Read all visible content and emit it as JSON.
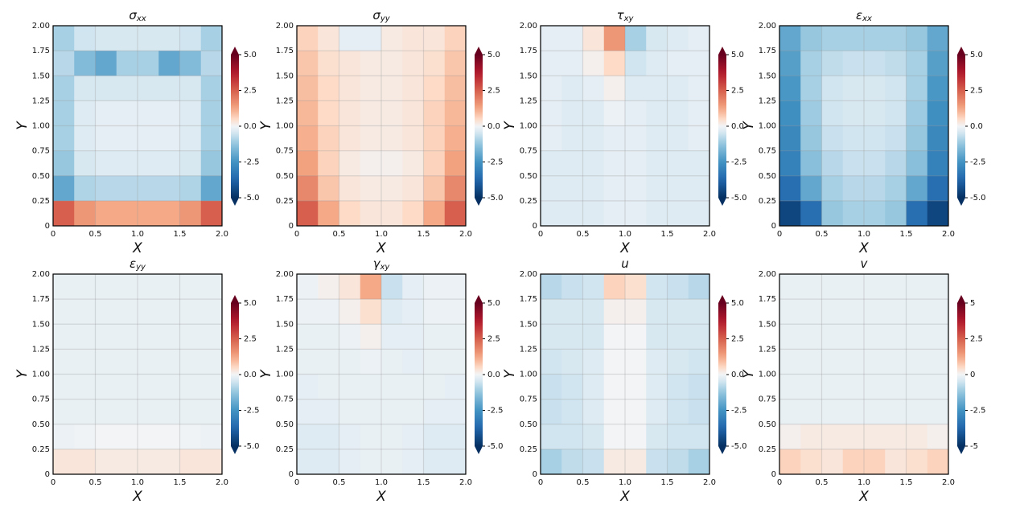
{
  "chart_data": [
    {
      "type": "heatmap",
      "title": "σxx",
      "xlabel": "X",
      "ylabel": "Y",
      "colormap": "RdBu_r",
      "xlim": [
        0,
        2
      ],
      "ylim": [
        0,
        2
      ],
      "xticks": [
        0,
        0.5,
        {
          "value": 1,
          "label": "1.0"
        },
        1.5,
        {
          "value": 2,
          "label": "2.0"
        }
      ],
      "yticks": [
        0,
        0.25,
        {
          "value": 0.5,
          "label": "0.50"
        },
        0.75,
        {
          "value": 1,
          "label": "1.00"
        },
        1.25,
        {
          "value": 1.5,
          "label": "1.50"
        },
        1.75,
        {
          "value": 2,
          "label": "2.00"
        }
      ],
      "clim": [
        -5,
        5
      ],
      "cticks": [
        {
          "value": 5,
          "label": "5.0"
        },
        2.5,
        {
          "value": 0,
          "label": "0.0"
        },
        -2.5,
        {
          "value": -5,
          "label": "-5.0"
        }
      ],
      "z": [
        [
          -1,
          -0.5,
          -0.4,
          -0.4,
          -0.4,
          -0.4,
          -0.5,
          -1
        ],
        [
          -0.8,
          -1.5,
          -2,
          -1,
          -1,
          -2,
          -1.5,
          -0.8
        ],
        [
          -1,
          -0.4,
          -0.4,
          -0.4,
          -0.4,
          -0.4,
          -0.4,
          -1
        ],
        [
          -1,
          -0.3,
          -0.2,
          -0.2,
          -0.2,
          -0.2,
          -0.3,
          -1
        ],
        [
          -1,
          -0.3,
          -0.2,
          -0.2,
          -0.2,
          -0.2,
          -0.3,
          -1
        ],
        [
          -1.2,
          -0.4,
          -0.3,
          -0.3,
          -0.3,
          -0.3,
          -0.4,
          -1.2
        ],
        [
          -2,
          -0.9,
          -0.8,
          -0.8,
          -0.8,
          -0.8,
          -0.9,
          -2
        ],
        [
          2.5,
          1.5,
          1.2,
          1.2,
          1.2,
          1.2,
          1.5,
          2.5
        ]
      ]
    },
    {
      "type": "heatmap",
      "title": "σyy",
      "xlabel": "X",
      "ylabel": "Y",
      "colormap": "RdBu_r",
      "xlim": [
        0,
        2
      ],
      "ylim": [
        0,
        2
      ],
      "xticks": [
        0,
        0.5,
        {
          "value": 1,
          "label": "1.0"
        },
        1.5,
        {
          "value": 2,
          "label": "2.0"
        }
      ],
      "yticks": [
        0,
        0.25,
        {
          "value": 0.5,
          "label": "0.50"
        },
        0.75,
        {
          "value": 1,
          "label": "1.00"
        },
        1.25,
        {
          "value": 1.5,
          "label": "1.50"
        },
        1.75,
        {
          "value": 2,
          "label": "2.00"
        }
      ],
      "clim": [
        -5,
        5
      ],
      "cticks": [
        {
          "value": 5,
          "label": "5.0"
        },
        2.5,
        {
          "value": 0,
          "label": "0.0"
        },
        -2.5,
        {
          "value": -5,
          "label": "-5.0"
        }
      ],
      "z": [
        [
          0.6,
          0.3,
          -0.2,
          -0.2,
          0.2,
          0.3,
          0.3,
          0.6
        ],
        [
          0.8,
          0.4,
          0.3,
          0.2,
          0.2,
          0.3,
          0.4,
          0.8
        ],
        [
          0.9,
          0.5,
          0.3,
          0.2,
          0.2,
          0.3,
          0.5,
          0.9
        ],
        [
          1,
          0.5,
          0.3,
          0.2,
          0.2,
          0.3,
          0.6,
          1
        ],
        [
          1.1,
          0.6,
          0.3,
          0.2,
          0.2,
          0.3,
          0.6,
          1.1
        ],
        [
          1.3,
          0.6,
          0.2,
          0.1,
          0.1,
          0.2,
          0.6,
          1.3
        ],
        [
          1.8,
          0.8,
          0.3,
          0.2,
          0.2,
          0.3,
          0.8,
          1.8
        ],
        [
          2.5,
          1.2,
          0.5,
          0.3,
          0.3,
          0.5,
          1.2,
          2.5
        ]
      ]
    },
    {
      "type": "heatmap",
      "title": "τxy",
      "xlabel": "X",
      "ylabel": "Y",
      "colormap": "RdBu_r",
      "xlim": [
        0,
        2
      ],
      "ylim": [
        0,
        2
      ],
      "xticks": [
        0,
        0.5,
        {
          "value": 1,
          "label": "1.0"
        },
        1.5,
        {
          "value": 2,
          "label": "2.0"
        }
      ],
      "yticks": [
        0,
        0.25,
        {
          "value": 0.5,
          "label": "0.50"
        },
        0.75,
        {
          "value": 1,
          "label": "1.00"
        },
        1.25,
        {
          "value": 1.5,
          "label": "1.50"
        },
        1.75,
        {
          "value": 2,
          "label": "2.00"
        }
      ],
      "clim": [
        -5,
        5
      ],
      "cticks": [
        {
          "value": 5,
          "label": "5.0"
        },
        2.5,
        {
          "value": 0,
          "label": "0.0"
        },
        -2.5,
        {
          "value": -5,
          "label": "-5.0"
        }
      ],
      "z": [
        [
          -0.2,
          -0.2,
          0.3,
          1.5,
          -1,
          -0.4,
          -0.3,
          -0.2
        ],
        [
          -0.2,
          -0.2,
          0.1,
          0.5,
          -0.5,
          -0.3,
          -0.2,
          -0.2
        ],
        [
          -0.2,
          -0.3,
          -0.2,
          0.1,
          -0.3,
          -0.3,
          -0.3,
          -0.2
        ],
        [
          -0.2,
          -0.3,
          -0.3,
          -0.1,
          -0.2,
          -0.3,
          -0.3,
          -0.2
        ],
        [
          -0.2,
          -0.3,
          -0.3,
          -0.2,
          -0.2,
          -0.3,
          -0.3,
          -0.2
        ],
        [
          -0.3,
          -0.3,
          -0.3,
          -0.2,
          -0.2,
          -0.3,
          -0.3,
          -0.3
        ],
        [
          -0.3,
          -0.3,
          -0.3,
          -0.2,
          -0.2,
          -0.3,
          -0.3,
          -0.3
        ],
        [
          -0.3,
          -0.3,
          -0.3,
          -0.2,
          -0.2,
          -0.3,
          -0.3,
          -0.3
        ]
      ]
    },
    {
      "type": "heatmap",
      "title": "εxx",
      "xlabel": "X",
      "ylabel": "Y",
      "colormap": "RdBu_r",
      "xlim": [
        0,
        2
      ],
      "ylim": [
        0,
        2
      ],
      "xticks": [
        0,
        0.5,
        {
          "value": 1,
          "label": "1.0"
        },
        1.5,
        {
          "value": 2,
          "label": "2.0"
        }
      ],
      "yticks": [
        0,
        0.25,
        {
          "value": 0.5,
          "label": "0.50"
        },
        0.75,
        {
          "value": 1,
          "label": "1.00"
        },
        1.25,
        {
          "value": 1.5,
          "label": "1.50"
        },
        1.75,
        {
          "value": 2,
          "label": "2.00"
        }
      ],
      "clim": [
        -5,
        5
      ],
      "cticks": [
        {
          "value": 5,
          "label": "5.0"
        },
        2.5,
        {
          "value": 0,
          "label": "0.0"
        },
        -2.5,
        {
          "value": -5,
          "label": "-5.0"
        }
      ],
      "z": [
        [
          -2,
          -1.2,
          -1,
          -1,
          -1,
          -1,
          -1.2,
          -2
        ],
        [
          -2.2,
          -1,
          -0.7,
          -0.6,
          -0.6,
          -0.7,
          -1,
          -2.2
        ],
        [
          -2.4,
          -1,
          -0.5,
          -0.4,
          -0.4,
          -0.5,
          -1,
          -2.4
        ],
        [
          -2.6,
          -1.1,
          -0.5,
          -0.4,
          -0.4,
          -0.5,
          -1.1,
          -2.6
        ],
        [
          -2.8,
          -1.2,
          -0.6,
          -0.5,
          -0.5,
          -0.6,
          -1.2,
          -2.8
        ],
        [
          -3,
          -1.4,
          -0.8,
          -0.6,
          -0.6,
          -0.8,
          -1.4,
          -3
        ],
        [
          -3.5,
          -2,
          -1,
          -0.8,
          -0.8,
          -1,
          -2,
          -3.5
        ],
        [
          -4.5,
          -3.5,
          -1.2,
          -1,
          -1,
          -1.2,
          -3.5,
          -4.5
        ]
      ]
    },
    {
      "type": "heatmap",
      "title": "εyy",
      "xlabel": "X",
      "ylabel": "Y",
      "colormap": "RdBu_r",
      "xlim": [
        0,
        2
      ],
      "ylim": [
        0,
        2
      ],
      "xticks": [
        0,
        0.5,
        {
          "value": 1,
          "label": "1.0"
        },
        1.5,
        {
          "value": 2,
          "label": "2.0"
        }
      ],
      "yticks": [
        0,
        0.25,
        {
          "value": 0.5,
          "label": "0.50"
        },
        0.75,
        {
          "value": 1,
          "label": "1.00"
        },
        1.25,
        {
          "value": 1.5,
          "label": "1.50"
        },
        1.75,
        {
          "value": 2,
          "label": "2.00"
        }
      ],
      "clim": [
        -5,
        5
      ],
      "cticks": [
        {
          "value": 5,
          "label": "5.0"
        },
        2.5,
        {
          "value": 0,
          "label": "0.0"
        },
        -2.5,
        {
          "value": -5,
          "label": "-5.0"
        }
      ],
      "z": [
        [
          -0.15,
          -0.15,
          -0.15,
          -0.15,
          -0.15,
          -0.15,
          -0.15,
          -0.15
        ],
        [
          -0.15,
          -0.15,
          -0.15,
          -0.15,
          -0.15,
          -0.15,
          -0.15,
          -0.15
        ],
        [
          -0.15,
          -0.15,
          -0.15,
          -0.15,
          -0.15,
          -0.15,
          -0.15,
          -0.15
        ],
        [
          -0.15,
          -0.15,
          -0.15,
          -0.15,
          -0.15,
          -0.15,
          -0.15,
          -0.15
        ],
        [
          -0.15,
          -0.15,
          -0.15,
          -0.15,
          -0.15,
          -0.15,
          -0.15,
          -0.15
        ],
        [
          -0.15,
          -0.15,
          -0.15,
          -0.15,
          -0.15,
          -0.15,
          -0.15,
          -0.15
        ],
        [
          -0.1,
          -0.05,
          0,
          0,
          0,
          0,
          -0.05,
          -0.1
        ],
        [
          0.3,
          0.3,
          0.2,
          0.2,
          0.2,
          0.2,
          0.3,
          0.3
        ]
      ]
    },
    {
      "type": "heatmap",
      "title": "γxy",
      "xlabel": "X",
      "ylabel": "Y",
      "colormap": "RdBu_r",
      "xlim": [
        0,
        2
      ],
      "ylim": [
        0,
        2
      ],
      "xticks": [
        0,
        0.5,
        {
          "value": 1,
          "label": "1.0"
        },
        1.5,
        {
          "value": 2,
          "label": "2.0"
        }
      ],
      "yticks": [
        0,
        0.25,
        {
          "value": 0.5,
          "label": "0.50"
        },
        0.75,
        {
          "value": 1,
          "label": "1.00"
        },
        1.25,
        {
          "value": 1.5,
          "label": "1.50"
        },
        1.75,
        {
          "value": 2,
          "label": "2.00"
        }
      ],
      "clim": [
        -5,
        5
      ],
      "cticks": [
        {
          "value": 5,
          "label": "5.0"
        },
        2.5,
        {
          "value": 0,
          "label": "0.0"
        },
        -2.5,
        {
          "value": -5,
          "label": "-5.0"
        }
      ],
      "z": [
        [
          -0.1,
          0.1,
          0.3,
          1.2,
          -0.6,
          -0.2,
          -0.1,
          -0.1
        ],
        [
          -0.1,
          -0.1,
          0.1,
          0.4,
          -0.3,
          -0.2,
          -0.1,
          -0.1
        ],
        [
          -0.15,
          -0.15,
          -0.1,
          0.1,
          -0.2,
          -0.2,
          -0.15,
          -0.15
        ],
        [
          -0.15,
          -0.15,
          -0.15,
          -0.1,
          -0.15,
          -0.2,
          -0.15,
          -0.15
        ],
        [
          -0.2,
          -0.15,
          -0.15,
          -0.15,
          -0.15,
          -0.15,
          -0.15,
          -0.2
        ],
        [
          -0.2,
          -0.2,
          -0.15,
          -0.15,
          -0.15,
          -0.15,
          -0.2,
          -0.2
        ],
        [
          -0.3,
          -0.3,
          -0.2,
          -0.15,
          -0.15,
          -0.2,
          -0.3,
          -0.3
        ],
        [
          -0.3,
          -0.3,
          -0.2,
          -0.15,
          -0.15,
          -0.2,
          -0.3,
          -0.3
        ]
      ]
    },
    {
      "type": "heatmap",
      "title": "u",
      "xlabel": "X",
      "ylabel": "Y",
      "colormap": "RdBu_r",
      "xlim": [
        0,
        2
      ],
      "ylim": [
        0,
        2
      ],
      "xticks": [
        0,
        0.5,
        {
          "value": 1,
          "label": "1.0"
        },
        1.5,
        {
          "value": 2,
          "label": "2.0"
        }
      ],
      "yticks": [
        0,
        0.25,
        {
          "value": 0.5,
          "label": "0.50"
        },
        0.75,
        {
          "value": 1,
          "label": "1.00"
        },
        1.25,
        {
          "value": 1.5,
          "label": "1.50"
        },
        1.75,
        {
          "value": 2,
          "label": "2.00"
        }
      ],
      "clim": [
        -5,
        5
      ],
      "cticks": [
        {
          "value": 5,
          "label": "5.0"
        },
        2.5,
        {
          "value": 0,
          "label": "0.0"
        },
        -2.5,
        {
          "value": -5,
          "label": "-5.0"
        }
      ],
      "z": [
        [
          -0.8,
          -0.6,
          -0.5,
          0.6,
          0.4,
          -0.5,
          -0.6,
          -0.8
        ],
        [
          -0.4,
          -0.4,
          -0.4,
          0.1,
          0.1,
          -0.4,
          -0.4,
          -0.4
        ],
        [
          -0.4,
          -0.4,
          -0.4,
          0,
          0,
          -0.4,
          -0.4,
          -0.4
        ],
        [
          -0.5,
          -0.4,
          -0.3,
          0,
          0,
          -0.3,
          -0.4,
          -0.5
        ],
        [
          -0.6,
          -0.5,
          -0.3,
          0,
          0,
          -0.3,
          -0.5,
          -0.6
        ],
        [
          -0.6,
          -0.5,
          -0.3,
          0,
          0,
          -0.3,
          -0.5,
          -0.6
        ],
        [
          -0.5,
          -0.5,
          -0.4,
          0,
          0,
          -0.4,
          -0.5,
          -0.5
        ],
        [
          -1,
          -0.7,
          -0.6,
          0.2,
          0.2,
          -0.6,
          -0.7,
          -1
        ]
      ]
    },
    {
      "type": "heatmap",
      "title": "v",
      "xlabel": "X",
      "ylabel": "Y",
      "colormap": "RdBu_r",
      "xlim": [
        0,
        2
      ],
      "ylim": [
        0,
        2
      ],
      "xticks": [
        0,
        0.5,
        {
          "value": 1,
          "label": "1.0"
        },
        1.5,
        {
          "value": 2,
          "label": "2.0"
        }
      ],
      "yticks": [
        0,
        0.25,
        {
          "value": 0.5,
          "label": "0.50"
        },
        0.75,
        {
          "value": 1,
          "label": "1.00"
        },
        1.25,
        {
          "value": 1.5,
          "label": "1.50"
        },
        1.75,
        {
          "value": 2,
          "label": "2.00"
        }
      ],
      "clim": [
        -5,
        5
      ],
      "cticks": [
        5,
        2.5,
        0,
        -2.5,
        -5
      ],
      "z": [
        [
          -0.15,
          -0.15,
          -0.15,
          -0.15,
          -0.15,
          -0.15,
          -0.15,
          -0.15
        ],
        [
          -0.15,
          -0.15,
          -0.15,
          -0.15,
          -0.15,
          -0.15,
          -0.15,
          -0.15
        ],
        [
          -0.15,
          -0.15,
          -0.15,
          -0.15,
          -0.15,
          -0.15,
          -0.15,
          -0.15
        ],
        [
          -0.15,
          -0.15,
          -0.15,
          -0.15,
          -0.15,
          -0.15,
          -0.15,
          -0.15
        ],
        [
          -0.15,
          -0.15,
          -0.15,
          -0.15,
          -0.15,
          -0.15,
          -0.15,
          -0.15
        ],
        [
          -0.15,
          -0.15,
          -0.15,
          -0.15,
          -0.15,
          -0.15,
          -0.15,
          -0.15
        ],
        [
          0.1,
          0.2,
          0.2,
          0.2,
          0.2,
          0.2,
          0.2,
          0.1
        ],
        [
          0.6,
          0.4,
          0.3,
          0.6,
          0.6,
          0.3,
          0.4,
          0.6
        ]
      ]
    }
  ]
}
